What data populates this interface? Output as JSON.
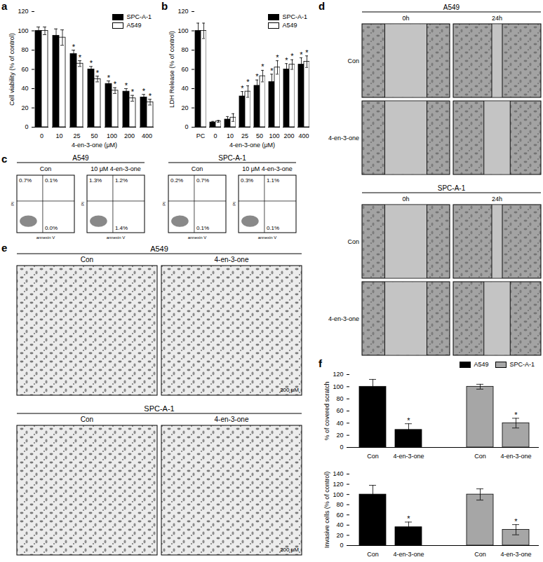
{
  "chart_data": [
    {
      "type": "bar",
      "panel": "a",
      "x_label": "4-en-3-one (μM)",
      "y_label": "Cell viability (% of control)",
      "categories": [
        0,
        10,
        25,
        50,
        100,
        200,
        400
      ],
      "series": [
        {
          "name": "SPC-A-1",
          "color": "#000000",
          "values": [
            100,
            95,
            76,
            60,
            45,
            37,
            31
          ],
          "errors": [
            4,
            7,
            4,
            3,
            3,
            3,
            3
          ],
          "significant": [
            false,
            false,
            true,
            true,
            true,
            true,
            true
          ]
        },
        {
          "name": "A549",
          "color": "#ffffff",
          "values": [
            100,
            93,
            66,
            50,
            38,
            30,
            26
          ],
          "errors": [
            4,
            8,
            3,
            3,
            3,
            3,
            3
          ],
          "significant": [
            false,
            false,
            true,
            true,
            true,
            true,
            true
          ]
        }
      ],
      "significance_label": "*",
      "ylim": [
        0,
        120
      ],
      "yticks": [
        0,
        20,
        40,
        60,
        80,
        100,
        120
      ],
      "legend": "top-right"
    },
    {
      "type": "bar",
      "panel": "b",
      "x_label": "4-en-3-one (μM)",
      "y_label": "LDH Release (% of control)",
      "categories": [
        "PC",
        "0",
        "10",
        "25",
        "50",
        "100",
        "200",
        "400"
      ],
      "series": [
        {
          "name": "SPC-A-1",
          "color": "#000000",
          "values": [
            100,
            5,
            8,
            32,
            43,
            47,
            60,
            65
          ],
          "errors": [
            8,
            1,
            3,
            5,
            6,
            8,
            6,
            7
          ],
          "significant": [
            false,
            false,
            false,
            true,
            true,
            true,
            true,
            true
          ]
        },
        {
          "name": "A549",
          "color": "#ffffff",
          "values": [
            100,
            6,
            10,
            37,
            53,
            62,
            65,
            68
          ],
          "errors": [
            8,
            1,
            4,
            6,
            6,
            7,
            5,
            6
          ],
          "significant": [
            false,
            false,
            false,
            true,
            true,
            true,
            true,
            true
          ]
        }
      ],
      "significance_label": "*",
      "ylim": [
        0,
        120
      ],
      "yticks": [
        0,
        20,
        40,
        60,
        80,
        100,
        120
      ],
      "legend": "top-right"
    },
    {
      "type": "flow_cytometry",
      "panel": "c",
      "x_label": "annexin V",
      "y_label": "PI",
      "groups": [
        {
          "title": "A549",
          "plots": [
            {
              "condition": "Con",
              "values": [
                0.7,
                0.1,
                0.0
              ],
              "value_labels": [
                "0.7%",
                "0.1%",
                "0.0%"
              ]
            },
            {
              "condition": "10 μM 4-en-3-one",
              "values": [
                1.3,
                1.2,
                1.4
              ],
              "value_labels": [
                "1.3%",
                "1.2%",
                "1.4%"
              ]
            }
          ]
        },
        {
          "title": "SPC-A-1",
          "plots": [
            {
              "condition": "Con",
              "values": [
                0.2,
                0.7,
                0.1
              ],
              "value_labels": [
                "0.2%",
                "0.7%",
                "0.1%"
              ]
            },
            {
              "condition": "10 μM 4-en-3-one",
              "values": [
                0.3,
                1.1,
                0.1
              ],
              "value_labels": [
                "0.3%",
                "1.1%",
                "0.1%"
              ]
            }
          ]
        }
      ]
    },
    {
      "type": "scratch_images",
      "panel": "d",
      "blocks": [
        {
          "title": "A549",
          "columns": [
            "0h",
            "24h"
          ],
          "rows": [
            "Con",
            "4-en-3-one"
          ]
        },
        {
          "title": "SPC-A-1",
          "columns": [
            "0h",
            "24h"
          ],
          "rows": [
            "Con",
            "4-en-3-one"
          ]
        }
      ]
    },
    {
      "type": "invasion_images",
      "panel": "e",
      "scale_bar": "200 μM",
      "blocks": [
        {
          "title": "A549",
          "columns": [
            "Con",
            "4-en-3-one"
          ]
        },
        {
          "title": "SPC-A-1",
          "columns": [
            "Con",
            "4-en-3-one"
          ]
        }
      ]
    },
    {
      "type": "bar",
      "panel": "f",
      "y_label": "% of covered scratch",
      "categories": [
        "Con",
        "4-en-3-one",
        null,
        "Con",
        "4-en-3-one"
      ],
      "series": [
        {
          "name": "A549",
          "color": "#000000",
          "values": [
            100,
            29,
            null,
            null,
            null
          ],
          "errors": [
            12,
            10,
            null,
            null,
            null
          ],
          "significant": [
            false,
            true,
            false,
            false,
            false
          ]
        },
        {
          "name": "SPC-A-1",
          "color": "#a6a6a6",
          "values": [
            null,
            null,
            null,
            100,
            40
          ],
          "errors": [
            null,
            null,
            null,
            4,
            8
          ],
          "significant": [
            false,
            false,
            false,
            false,
            true
          ]
        }
      ],
      "significance_label": "*",
      "ylim": [
        0,
        120
      ],
      "yticks": [
        0,
        20,
        40,
        60,
        80,
        100,
        120
      ],
      "legend": "top"
    },
    {
      "type": "bar",
      "y_label": "Invasive cells (% of control)",
      "categories": [
        "Con",
        "4-en-3-one",
        null,
        "Con",
        "4-en-3-one"
      ],
      "series": [
        {
          "name": "A549",
          "color": "#000000",
          "values": [
            100,
            36,
            null,
            null,
            null
          ],
          "errors": [
            18,
            10,
            null,
            null,
            null
          ],
          "significant": [
            false,
            true,
            false,
            false,
            false
          ]
        },
        {
          "name": "SPC-A-1",
          "color": "#a6a6a6",
          "values": [
            null,
            null,
            null,
            100,
            31
          ],
          "errors": [
            null,
            null,
            null,
            11,
            10
          ],
          "significant": [
            false,
            false,
            false,
            false,
            true
          ]
        }
      ],
      "significance_label": "*",
      "ylim": [
        0,
        140
      ],
      "yticks": [
        0,
        20,
        40,
        60,
        80,
        100,
        120,
        140
      ]
    }
  ]
}
